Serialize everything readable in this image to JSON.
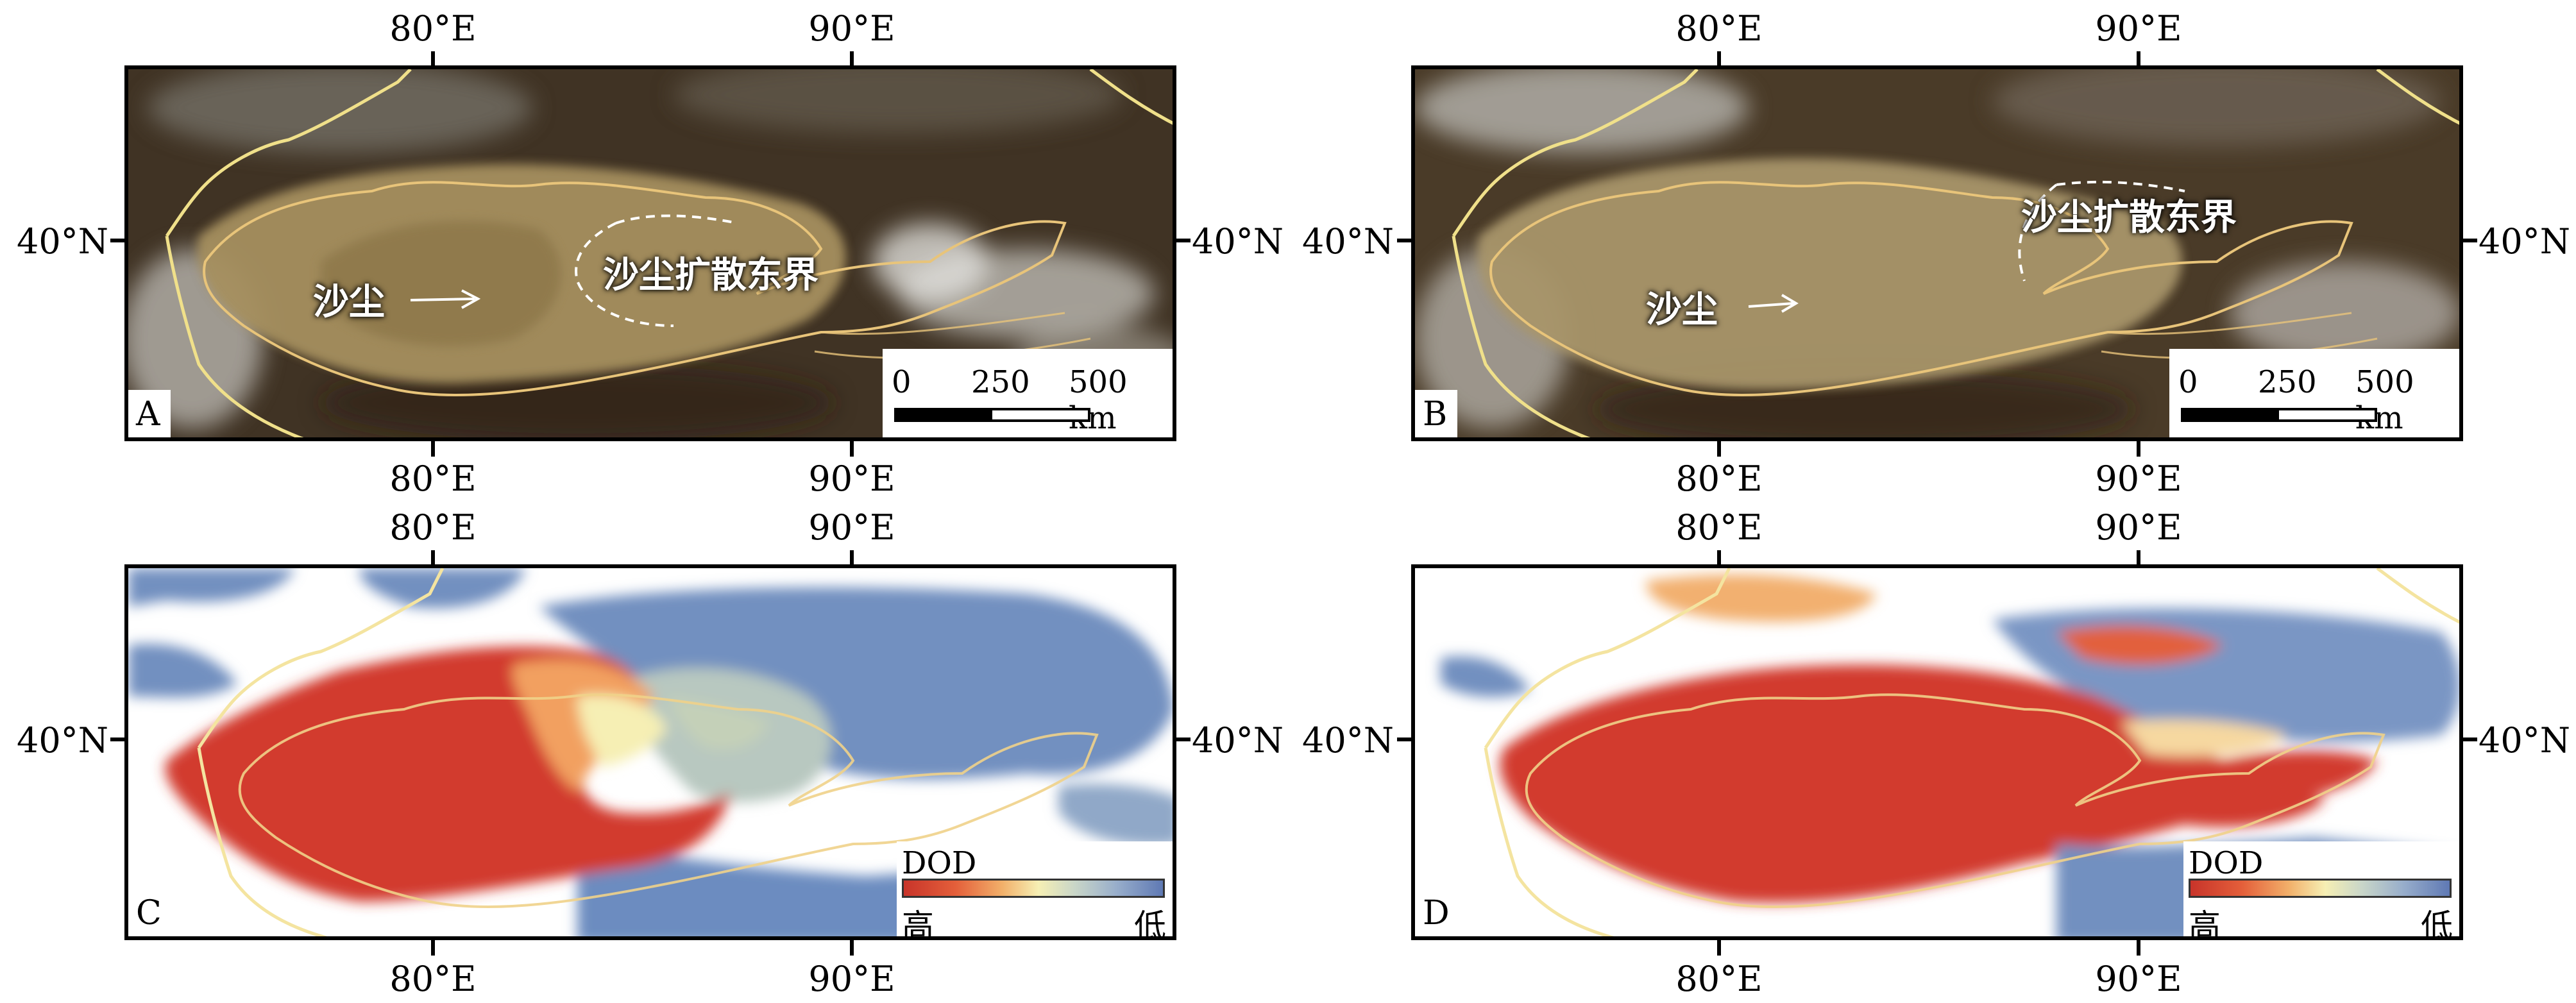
{
  "axis_labels": {
    "lon_80": "80°E",
    "lon_90": "90°E",
    "lat_40": "40°N"
  },
  "panels": {
    "a": {
      "letter": "A",
      "dust_label": "沙尘",
      "boundary_label": "沙尘扩散东界"
    },
    "b": {
      "letter": "B",
      "dust_label": "沙尘",
      "boundary_label": "沙尘扩散东界"
    },
    "c": {
      "letter": "C"
    },
    "d": {
      "letter": "D"
    }
  },
  "scale_bar": {
    "t0": "0",
    "t1": "250",
    "t2": "500 km"
  },
  "dod_legend": {
    "title": "DOD",
    "high": "高",
    "low": "低"
  },
  "colors": {
    "dod_high": "#c8342a",
    "dod_mid": "#f6efb4",
    "dod_low": "#5f79b4",
    "basin_outline": "#e8c47a",
    "border": "#f0e08a"
  }
}
